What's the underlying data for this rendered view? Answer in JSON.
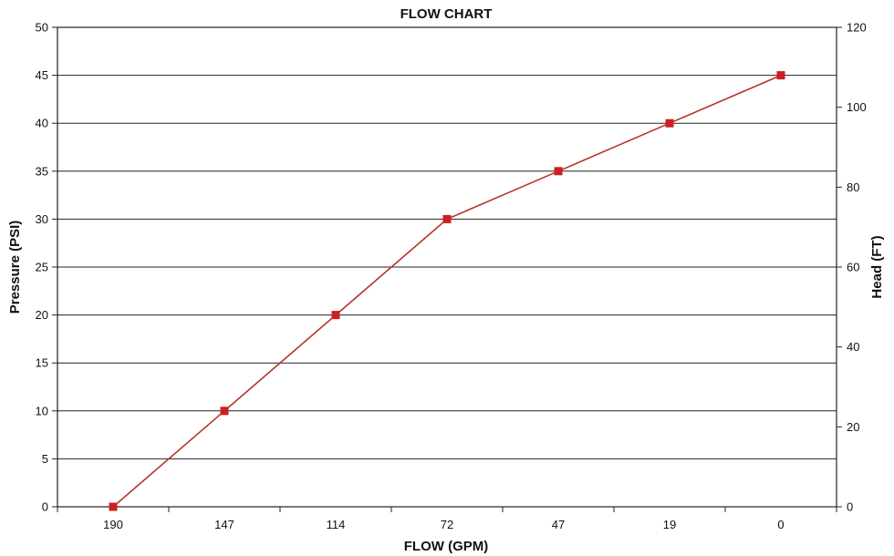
{
  "chart_data": {
    "type": "line",
    "title": "FLOW CHART",
    "xlabel": "FLOW (GPM)",
    "ylabel": "Pressure (PSI)",
    "y2label": "Head (FT)",
    "categories": [
      "190",
      "147",
      "114",
      "72",
      "47",
      "19",
      "0"
    ],
    "series": [
      {
        "values": [
          0,
          10,
          20,
          30,
          35,
          40,
          45
        ]
      }
    ],
    "ylim": [
      0,
      50
    ],
    "yticks": [
      0,
      5,
      10,
      15,
      20,
      25,
      30,
      35,
      40,
      45,
      50
    ],
    "y2lim": [
      0,
      120
    ],
    "y2ticks": [
      0,
      20,
      40,
      60,
      80,
      100,
      120
    ],
    "grid": "horizontal",
    "colors": {
      "line": "#b5342a",
      "marker": "#cc1f1f",
      "grid": "#222222"
    }
  }
}
